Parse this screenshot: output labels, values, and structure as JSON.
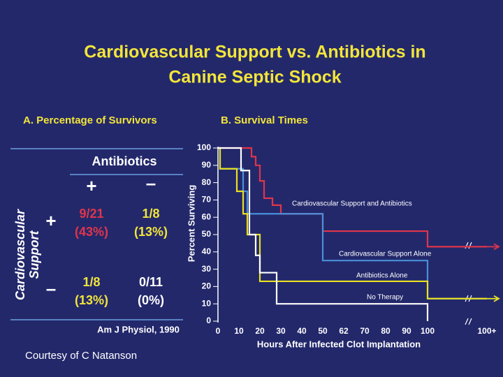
{
  "title": [
    "Cardiovascular Support vs. Antibiotics in",
    "Canine Septic Shock"
  ],
  "panel_a": {
    "title": "A. Percentage of Survivors",
    "column_header": "Antibiotics",
    "column_signs": [
      "+",
      "–"
    ],
    "row_header": [
      "Cardiovascular",
      "Support"
    ],
    "row_signs": [
      "+",
      "–"
    ],
    "cells": [
      [
        [
          "9/21",
          "(43%)"
        ],
        [
          "1/8",
          "(13%)"
        ]
      ],
      [
        [
          "1/8",
          "(13%)"
        ],
        [
          "0/11",
          "(0%)"
        ]
      ]
    ],
    "citation": "Am J  Physiol, 1990"
  },
  "courtesy": "Courtesy of C Natanson",
  "chart_data": {
    "type": "step",
    "title": "B. Survival Times",
    "x_label": "Hours After Infected Clot Implantation",
    "y_label": "Percent Surviving",
    "xlim": [
      0,
      110
    ],
    "xticks": [
      0,
      10,
      20,
      30,
      40,
      50,
      62,
      70,
      80,
      90,
      100,
      {
        "value": 110,
        "label": "100+"
      }
    ],
    "ylim": [
      0,
      100
    ],
    "yticks": [
      0,
      10,
      20,
      30,
      40,
      50,
      60,
      70,
      80,
      90,
      100
    ],
    "series": [
      {
        "name": "Cardiovascular Support and Antibiotics",
        "color": "#e0354a",
        "x": [
          0,
          16,
          18,
          20,
          22,
          26,
          30,
          50,
          100,
          110
        ],
        "values": [
          100,
          95,
          90,
          81,
          71,
          67,
          62,
          52,
          43,
          43
        ]
      },
      {
        "name": "Cardiovascular Support Alone",
        "color": "#4a90d9",
        "x": [
          0,
          1,
          12,
          14,
          50,
          100,
          110
        ],
        "values": [
          100,
          88,
          75,
          62,
          35,
          13,
          13
        ]
      },
      {
        "name": "Antibiotics Alone",
        "color": "#e8e020",
        "x": [
          0,
          1,
          9,
          12,
          14,
          20,
          100,
          110
        ],
        "values": [
          100,
          88,
          75,
          62,
          50,
          23,
          13,
          13
        ]
      },
      {
        "name": "No Therapy",
        "color": "#ffffff",
        "x": [
          0,
          11,
          15,
          18,
          20,
          28,
          100
        ],
        "values": [
          100,
          87,
          50,
          38,
          28,
          10,
          0
        ]
      }
    ]
  }
}
